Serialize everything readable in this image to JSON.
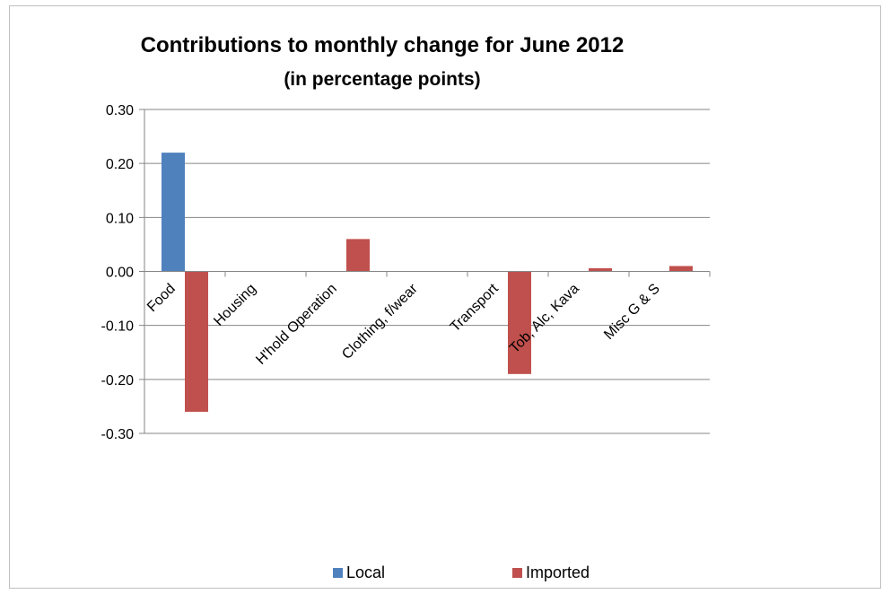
{
  "chart_data": {
    "type": "bar",
    "title": "Contributions to monthly change for  June 2012",
    "subtitle": "(in percentage points)",
    "xlabel": "",
    "ylabel": "",
    "categories": [
      "Food",
      "Housing",
      "H'hold Operation",
      "Clothing, f/wear",
      "Transport",
      "Tob, Alc, Kava",
      "Misc G & S"
    ],
    "series": [
      {
        "name": "Local",
        "color": "#4f81bd",
        "values": [
          0.22,
          0,
          0,
          0,
          0,
          0,
          0
        ]
      },
      {
        "name": "Imported",
        "color": "#c0504d",
        "values": [
          -0.26,
          0,
          0.06,
          0,
          -0.19,
          0.006,
          0.01
        ]
      }
    ],
    "ylim": [
      -0.3,
      0.3
    ],
    "yticks": [
      "0.30",
      "0.20",
      "0.10",
      "0.00",
      "-0.10",
      "-0.20",
      "-0.30"
    ],
    "ytick_values": [
      0.3,
      0.2,
      0.1,
      0.0,
      -0.1,
      -0.2,
      -0.3
    ],
    "grid": true,
    "legend_position": "bottom"
  }
}
